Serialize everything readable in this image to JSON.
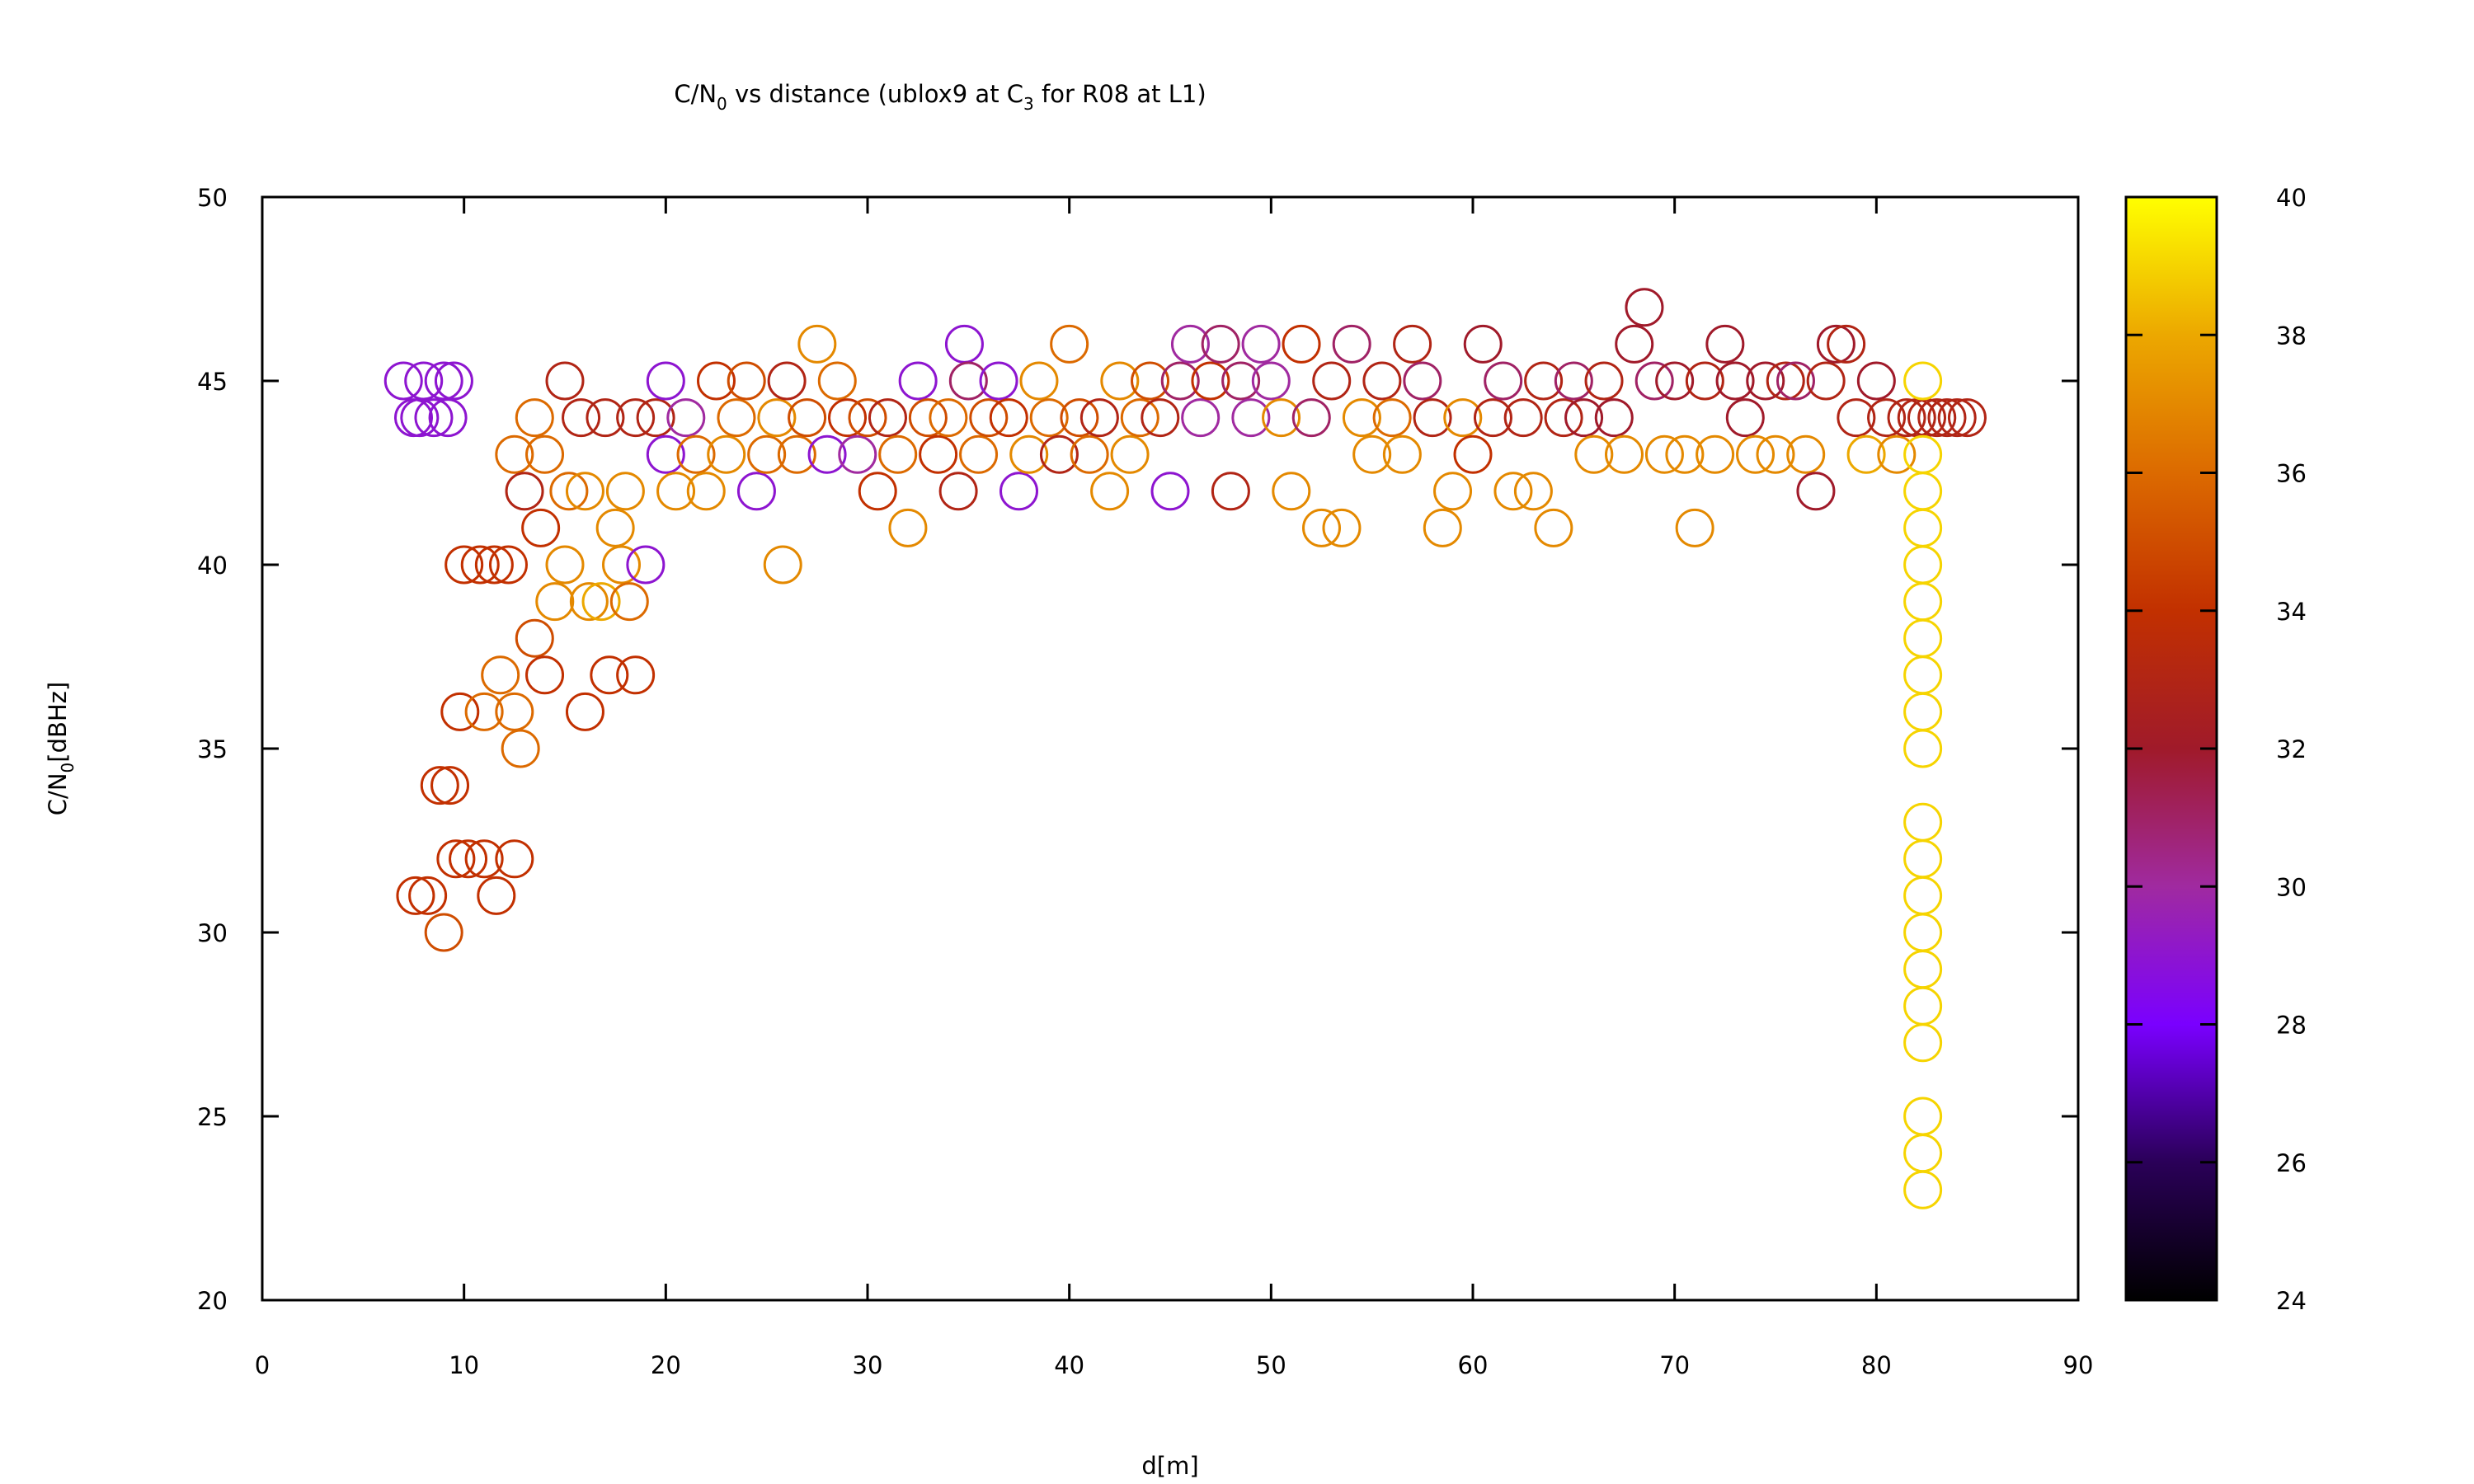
{
  "chart_data": {
    "type": "scatter",
    "title": {
      "main": "C/N",
      "sub": "0",
      "rest": " vs distance (ublox9 at C",
      "sub2": "3",
      "rest2": " for R08 at L1)"
    },
    "xlabel": "d[m]",
    "ylabel": {
      "main": "C/N",
      "sub": "0",
      "rest": "[dBHz]"
    },
    "xlim": [
      0,
      90
    ],
    "ylim": [
      20,
      50
    ],
    "xticks": [
      0,
      10,
      20,
      30,
      40,
      50,
      60,
      70,
      80,
      90
    ],
    "yticks": [
      20,
      25,
      30,
      35,
      40,
      45,
      50
    ],
    "colorbar": {
      "range": [
        24,
        40
      ],
      "ticks": [
        24,
        26,
        28,
        30,
        32,
        34,
        36,
        38,
        40
      ],
      "palette": "gnuplot black-blue-purple-red-orange-yellow"
    },
    "marker": "open-circle",
    "grid": false,
    "points": [
      [
        7.0,
        45,
        29
      ],
      [
        7.5,
        44,
        29
      ],
      [
        8.0,
        45,
        29
      ],
      [
        8.5,
        44,
        29
      ],
      [
        9.0,
        45,
        29
      ],
      [
        9.5,
        45,
        29
      ],
      [
        9.2,
        44,
        29
      ],
      [
        7.8,
        44,
        29
      ],
      [
        7.6,
        31,
        34
      ],
      [
        8.2,
        31,
        34
      ],
      [
        8.8,
        34,
        34
      ],
      [
        9.3,
        34,
        34
      ],
      [
        9.0,
        30,
        35
      ],
      [
        9.6,
        32,
        34
      ],
      [
        10.2,
        32,
        34
      ],
      [
        11.0,
        32,
        34
      ],
      [
        12.5,
        32,
        34
      ],
      [
        11.6,
        31,
        34
      ],
      [
        9.8,
        36,
        34
      ],
      [
        10.0,
        40,
        34
      ],
      [
        10.8,
        40,
        34
      ],
      [
        11.5,
        40,
        34
      ],
      [
        12.2,
        40,
        34
      ],
      [
        11.0,
        36,
        36
      ],
      [
        11.8,
        37,
        36
      ],
      [
        12.5,
        36,
        36
      ],
      [
        12.8,
        35,
        36
      ],
      [
        12.5,
        43,
        36
      ],
      [
        13.0,
        42,
        33
      ],
      [
        13.5,
        44,
        36
      ],
      [
        14.0,
        43,
        36
      ],
      [
        13.8,
        41,
        34
      ],
      [
        13.5,
        38,
        35
      ],
      [
        14.0,
        37,
        34
      ],
      [
        14.5,
        39,
        37
      ],
      [
        15.0,
        40,
        37
      ],
      [
        15.2,
        42,
        36
      ],
      [
        15.0,
        45,
        33
      ],
      [
        15.8,
        44,
        33
      ],
      [
        16.0,
        42,
        37
      ],
      [
        16.2,
        39,
        37
      ],
      [
        16.8,
        39,
        38
      ],
      [
        17.2,
        37,
        34
      ],
      [
        17.5,
        41,
        37
      ],
      [
        16.0,
        36,
        34
      ],
      [
        17.0,
        44,
        33
      ],
      [
        17.8,
        40,
        37
      ],
      [
        18.0,
        42,
        37
      ],
      [
        18.5,
        44,
        33
      ],
      [
        18.2,
        39,
        36
      ],
      [
        18.5,
        37,
        34
      ],
      [
        19.0,
        40,
        29
      ],
      [
        19.5,
        44,
        33
      ],
      [
        20.0,
        45,
        29
      ],
      [
        20.0,
        43,
        29
      ],
      [
        20.5,
        42,
        37
      ],
      [
        21.0,
        44,
        30
      ],
      [
        21.5,
        43,
        36
      ],
      [
        22.0,
        42,
        37
      ],
      [
        22.5,
        45,
        34
      ],
      [
        23.0,
        43,
        37
      ],
      [
        23.5,
        44,
        36
      ],
      [
        24.0,
        45,
        35
      ],
      [
        24.5,
        42,
        29
      ],
      [
        25.0,
        43,
        36
      ],
      [
        25.5,
        44,
        37
      ],
      [
        25.8,
        40,
        37
      ],
      [
        26.0,
        45,
        33
      ],
      [
        26.5,
        43,
        36
      ],
      [
        27.0,
        44,
        35
      ],
      [
        27.5,
        46,
        37
      ],
      [
        28.0,
        43,
        29
      ],
      [
        28.5,
        45,
        36
      ],
      [
        29.0,
        44,
        34
      ],
      [
        29.5,
        43,
        30
      ],
      [
        30.0,
        44,
        35
      ],
      [
        30.5,
        42,
        34
      ],
      [
        31.0,
        44,
        33
      ],
      [
        31.5,
        43,
        36
      ],
      [
        32.0,
        41,
        37
      ],
      [
        32.5,
        45,
        29
      ],
      [
        33.0,
        44,
        35
      ],
      [
        33.5,
        43,
        34
      ],
      [
        34.0,
        44,
        36
      ],
      [
        34.5,
        42,
        33
      ],
      [
        34.8,
        46,
        29
      ],
      [
        35.0,
        45,
        31
      ],
      [
        35.5,
        43,
        36
      ],
      [
        36.0,
        44,
        35
      ],
      [
        36.5,
        45,
        29
      ],
      [
        37.0,
        44,
        34
      ],
      [
        37.5,
        42,
        29
      ],
      [
        38.0,
        43,
        37
      ],
      [
        38.5,
        45,
        37
      ],
      [
        39.0,
        44,
        36
      ],
      [
        39.5,
        43,
        33
      ],
      [
        40.0,
        46,
        36
      ],
      [
        40.5,
        44,
        35
      ],
      [
        41.0,
        43,
        36
      ],
      [
        41.5,
        44,
        33
      ],
      [
        42.0,
        42,
        37
      ],
      [
        42.5,
        45,
        37
      ],
      [
        43.0,
        43,
        37
      ],
      [
        43.5,
        44,
        36
      ],
      [
        44.0,
        45,
        35
      ],
      [
        44.5,
        44,
        33
      ],
      [
        45.0,
        42,
        29
      ],
      [
        45.5,
        45,
        31
      ],
      [
        46.0,
        46,
        30
      ],
      [
        46.5,
        44,
        30
      ],
      [
        47.0,
        45,
        34
      ],
      [
        47.5,
        46,
        31
      ],
      [
        48.0,
        42,
        33
      ],
      [
        48.5,
        45,
        31
      ],
      [
        49.0,
        44,
        30
      ],
      [
        49.5,
        46,
        30
      ],
      [
        50.0,
        45,
        30
      ],
      [
        50.5,
        44,
        37
      ],
      [
        51.0,
        42,
        37
      ],
      [
        51.5,
        46,
        34
      ],
      [
        52.0,
        44,
        31
      ],
      [
        52.5,
        41,
        37
      ],
      [
        53.0,
        45,
        33
      ],
      [
        53.5,
        41,
        37
      ],
      [
        54.0,
        46,
        31
      ],
      [
        54.5,
        44,
        37
      ],
      [
        55.0,
        43,
        37
      ],
      [
        55.5,
        45,
        33
      ],
      [
        56.0,
        44,
        36
      ],
      [
        56.5,
        43,
        37
      ],
      [
        57.0,
        46,
        33
      ],
      [
        57.5,
        45,
        31
      ],
      [
        58.0,
        44,
        33
      ],
      [
        58.5,
        41,
        37
      ],
      [
        59.0,
        42,
        37
      ],
      [
        59.5,
        44,
        37
      ],
      [
        60.0,
        43,
        34
      ],
      [
        60.5,
        46,
        32
      ],
      [
        61.0,
        44,
        33
      ],
      [
        61.5,
        45,
        31
      ],
      [
        62.0,
        42,
        37
      ],
      [
        62.5,
        44,
        33
      ],
      [
        63.0,
        42,
        37
      ],
      [
        63.5,
        45,
        33
      ],
      [
        64.0,
        41,
        37
      ],
      [
        64.5,
        44,
        33
      ],
      [
        65.0,
        45,
        31
      ],
      [
        65.5,
        44,
        32
      ],
      [
        66.0,
        43,
        37
      ],
      [
        66.5,
        45,
        33
      ],
      [
        67.0,
        44,
        32
      ],
      [
        67.5,
        43,
        37
      ],
      [
        68.0,
        46,
        32
      ],
      [
        68.5,
        47,
        32
      ],
      [
        69.0,
        45,
        31
      ],
      [
        69.5,
        43,
        37
      ],
      [
        70.0,
        45,
        32
      ],
      [
        70.5,
        43,
        37
      ],
      [
        71.0,
        41,
        37
      ],
      [
        71.5,
        45,
        33
      ],
      [
        72.0,
        43,
        37
      ],
      [
        72.5,
        46,
        32
      ],
      [
        73.0,
        45,
        32
      ],
      [
        73.5,
        44,
        32
      ],
      [
        74.0,
        43,
        37
      ],
      [
        74.5,
        45,
        32
      ],
      [
        75.0,
        43,
        37
      ],
      [
        75.5,
        45,
        33
      ],
      [
        76.0,
        45,
        31
      ],
      [
        76.5,
        43,
        37
      ],
      [
        77.0,
        42,
        32
      ],
      [
        77.5,
        45,
        33
      ],
      [
        78.0,
        46,
        32
      ],
      [
        78.5,
        46,
        33
      ],
      [
        79.0,
        44,
        33
      ],
      [
        79.5,
        43,
        38
      ],
      [
        80.0,
        45,
        32
      ],
      [
        80.5,
        44,
        33
      ],
      [
        81.0,
        43,
        37
      ],
      [
        81.5,
        44,
        33
      ],
      [
        82.0,
        44,
        33
      ],
      [
        82.5,
        44,
        33
      ],
      [
        83.0,
        44,
        33
      ],
      [
        83.5,
        44,
        33
      ],
      [
        84.0,
        44,
        33
      ],
      [
        84.5,
        44,
        33
      ],
      [
        82.3,
        45,
        39
      ],
      [
        82.3,
        43,
        39
      ],
      [
        82.3,
        42,
        39
      ],
      [
        82.3,
        41,
        39
      ],
      [
        82.3,
        40,
        39
      ],
      [
        82.3,
        39,
        39
      ],
      [
        82.3,
        38,
        39
      ],
      [
        82.3,
        37,
        39
      ],
      [
        82.3,
        36,
        39
      ],
      [
        82.3,
        35,
        39
      ],
      [
        82.3,
        33,
        39
      ],
      [
        82.3,
        32,
        39
      ],
      [
        82.3,
        31,
        39
      ],
      [
        82.3,
        30,
        39
      ],
      [
        82.3,
        29,
        39
      ],
      [
        82.3,
        28,
        39
      ],
      [
        82.3,
        27,
        39
      ],
      [
        82.3,
        25,
        39
      ],
      [
        82.3,
        24,
        39
      ],
      [
        82.3,
        23,
        39
      ]
    ]
  }
}
